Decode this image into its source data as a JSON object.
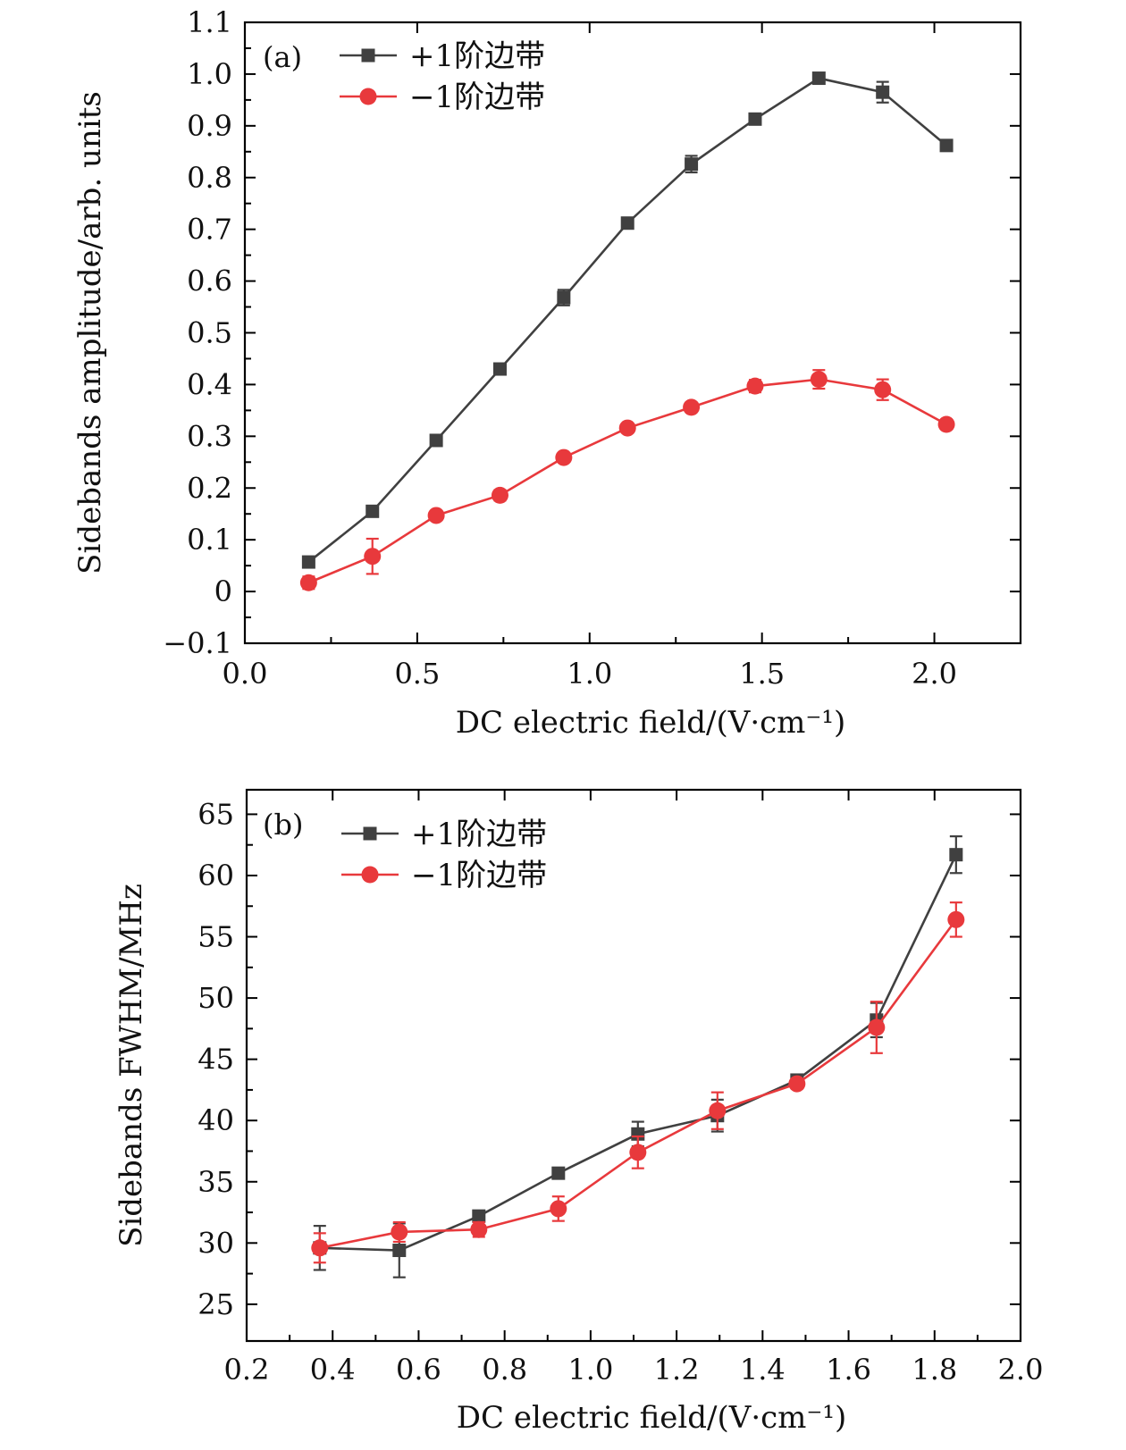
{
  "chart_data": [
    {
      "type": "line",
      "panel_label": "(a)",
      "xlabel": "DC electric field/(V·cm⁻¹)",
      "ylabel": "Sidebands amplitude/arb. units",
      "xlim": [
        0.0,
        2.25
      ],
      "ylim": [
        -0.1,
        1.1
      ],
      "xticks": [
        0.0,
        0.5,
        1.0,
        1.5,
        2.0
      ],
      "xtick_labels": [
        "0.0",
        "0.5",
        "1.0",
        "1.5",
        "2.0"
      ],
      "xminor_step": 0.25,
      "yticks": [
        -0.1,
        0.0,
        0.1,
        0.2,
        0.3,
        0.4,
        0.5,
        0.6,
        0.7,
        0.8,
        0.9,
        1.0,
        1.1
      ],
      "ytick_labels": [
        "−0.1",
        "0",
        "0.1",
        "0.2",
        "0.3",
        "0.4",
        "0.5",
        "0.6",
        "0.7",
        "0.8",
        "0.9",
        "1.0",
        "1.1"
      ],
      "legend_position": "top-left",
      "series": [
        {
          "name": "+1阶边带",
          "color": "#404040",
          "marker": "square",
          "x": [
            0.185,
            0.37,
            0.555,
            0.74,
            0.925,
            1.11,
            1.295,
            1.48,
            1.665,
            1.85,
            2.035
          ],
          "y": [
            0.057,
            0.155,
            0.292,
            0.43,
            0.568,
            0.712,
            0.826,
            0.913,
            0.992,
            0.965,
            0.862
          ],
          "err": [
            0.006,
            0.007,
            0.008,
            0.007,
            0.015,
            0.007,
            0.016,
            0.008,
            0.008,
            0.02,
            0.008
          ]
        },
        {
          "name": "−1阶边带",
          "color": "#e8393c",
          "marker": "circle",
          "x": [
            0.185,
            0.37,
            0.555,
            0.74,
            0.925,
            1.11,
            1.295,
            1.48,
            1.665,
            1.85,
            2.035
          ],
          "y": [
            0.017,
            0.068,
            0.147,
            0.186,
            0.259,
            0.316,
            0.356,
            0.397,
            0.41,
            0.39,
            0.323
          ],
          "err": [
            0.012,
            0.034,
            0.006,
            0.01,
            0.008,
            0.007,
            0.007,
            0.012,
            0.018,
            0.02,
            0.007
          ]
        }
      ]
    },
    {
      "type": "line",
      "panel_label": "(b)",
      "xlabel": "DC electric field/(V·cm⁻¹)",
      "ylabel": "Sidebands FWHM/MHz",
      "xlim": [
        0.2,
        2.0
      ],
      "ylim": [
        22,
        67
      ],
      "xticks": [
        0.2,
        0.4,
        0.6,
        0.8,
        1.0,
        1.2,
        1.4,
        1.6,
        1.8,
        2.0
      ],
      "xtick_labels": [
        "0.2",
        "0.4",
        "0.6",
        "0.8",
        "1.0",
        "1.2",
        "1.4",
        "1.6",
        "1.8",
        "2.0"
      ],
      "xminor_step": 0.1,
      "yticks": [
        25,
        30,
        35,
        40,
        45,
        50,
        55,
        60,
        65
      ],
      "ytick_labels": [
        "25",
        "30",
        "35",
        "40",
        "45",
        "50",
        "55",
        "60",
        "65"
      ],
      "legend_position": "top-left",
      "series": [
        {
          "name": "+1阶边带",
          "color": "#404040",
          "marker": "square",
          "x": [
            0.37,
            0.555,
            0.74,
            0.925,
            1.11,
            1.295,
            1.48,
            1.665,
            1.85
          ],
          "y": [
            29.6,
            29.4,
            32.2,
            35.7,
            38.9,
            40.4,
            43.3,
            48.2,
            61.7
          ],
          "err": [
            1.8,
            2.2,
            0.4,
            0.4,
            1.0,
            1.3,
            0.3,
            1.4,
            1.5
          ]
        },
        {
          "name": "−1阶边带",
          "color": "#e8393c",
          "marker": "circle",
          "x": [
            0.37,
            0.555,
            0.74,
            0.925,
            1.11,
            1.295,
            1.48,
            1.665,
            1.85
          ],
          "y": [
            29.6,
            30.9,
            31.1,
            32.8,
            37.4,
            40.8,
            43.0,
            47.6,
            56.4
          ],
          "err": [
            1.2,
            0.8,
            0.6,
            1.0,
            1.3,
            1.5,
            0.4,
            2.1,
            1.4
          ]
        }
      ]
    }
  ]
}
